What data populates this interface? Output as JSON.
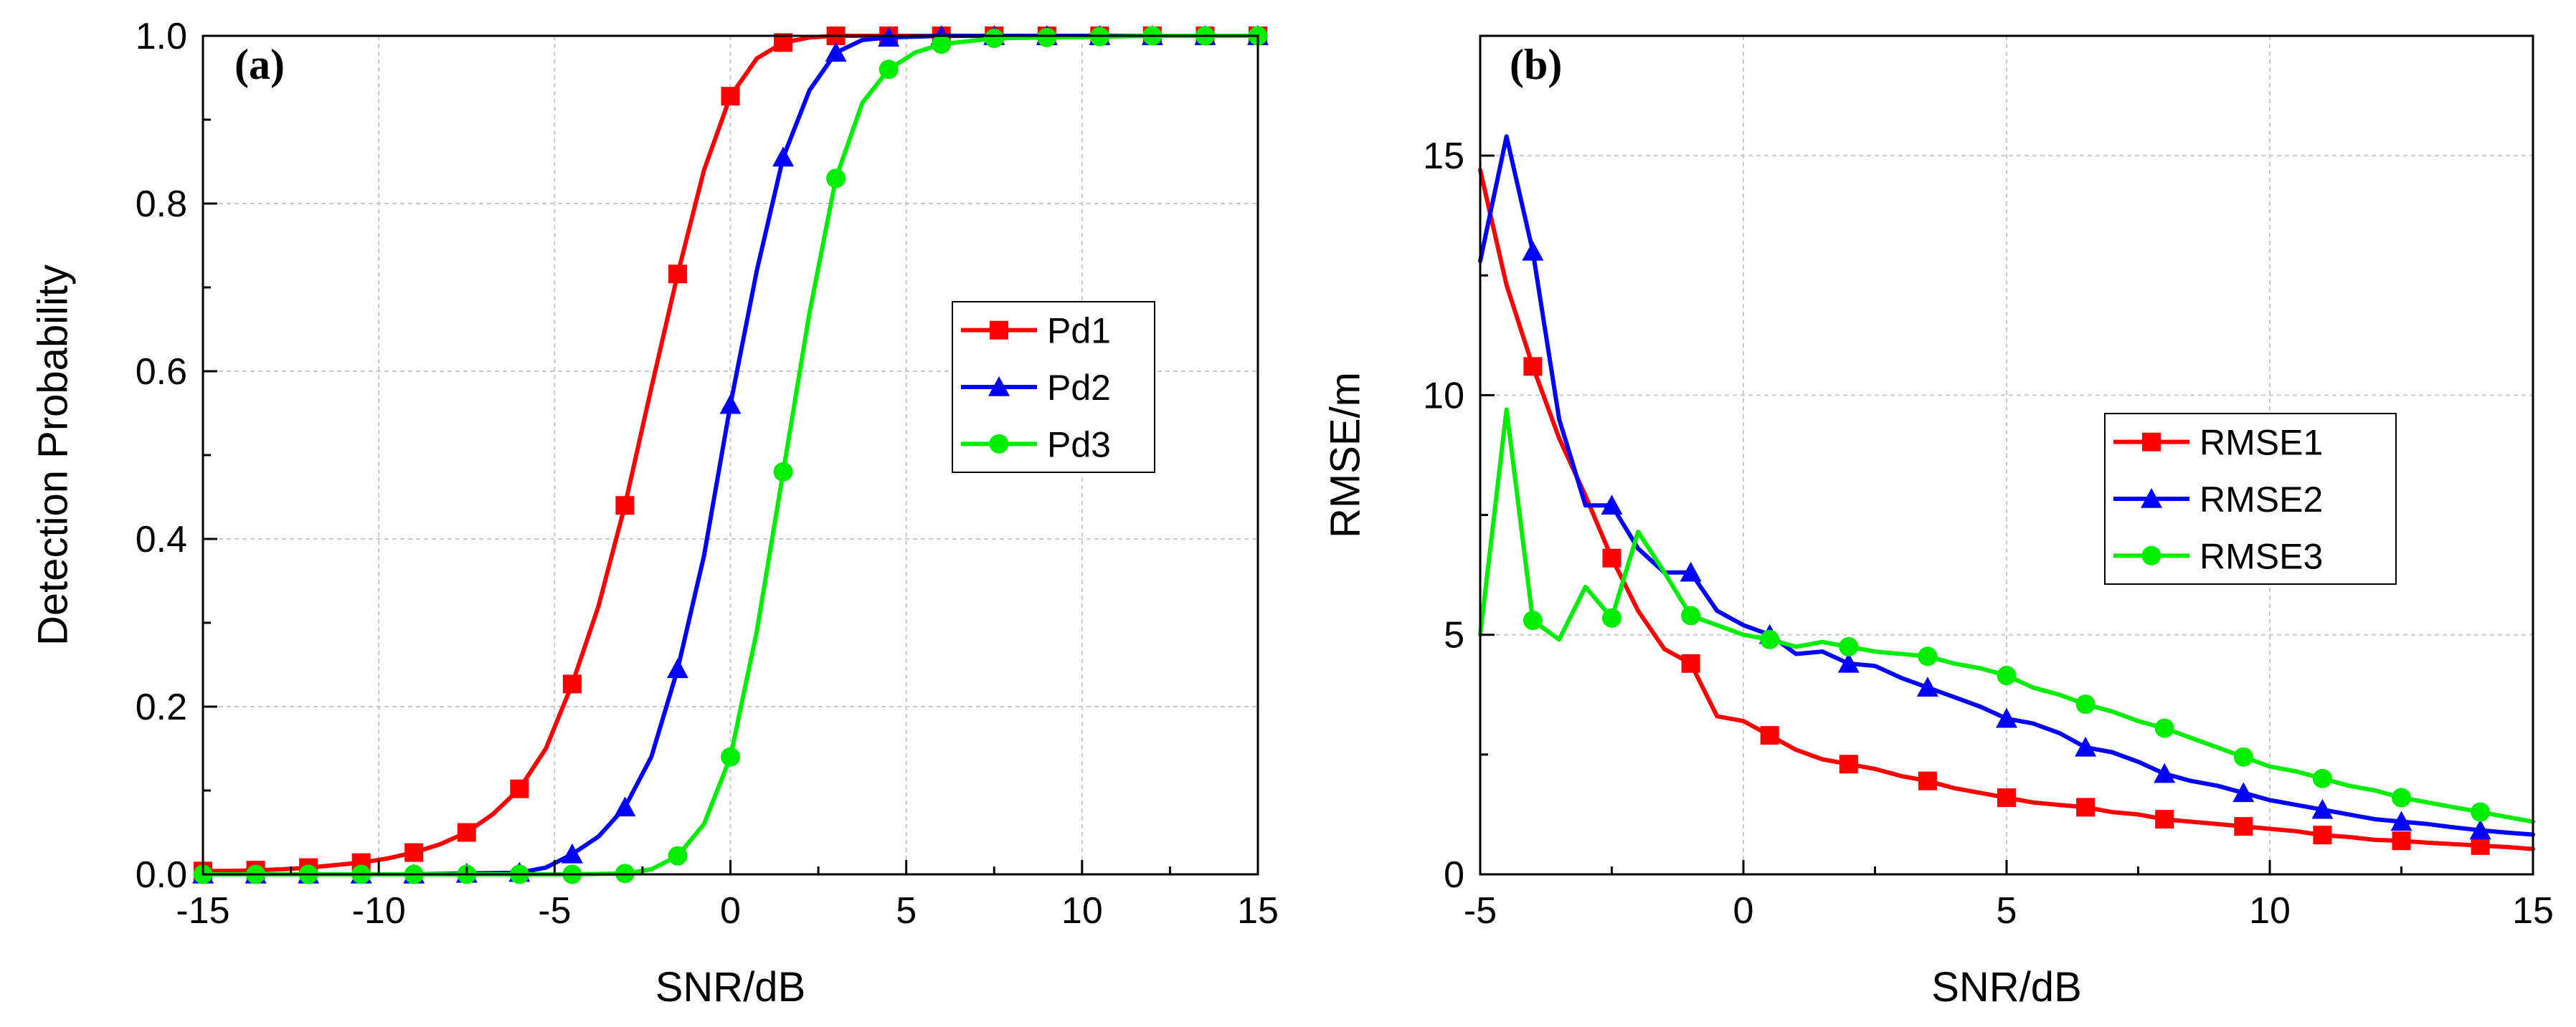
{
  "chart_data": [
    {
      "type": "line",
      "panel_label": "(a)",
      "xlabel": "SNR/dB",
      "ylabel": "Detection Probability",
      "xlim": [
        -15,
        15
      ],
      "ylim": [
        0,
        1
      ],
      "xticks": [
        "-15",
        "-10",
        "-5",
        "0",
        "5",
        "10",
        "15"
      ],
      "yticks": [
        "0.0",
        "0.2",
        "0.4",
        "0.6",
        "0.8",
        "1.0"
      ],
      "xtick_values": [
        -15,
        -10,
        -5,
        0,
        5,
        10,
        15
      ],
      "ytick_values": [
        0,
        0.2,
        0.4,
        0.6,
        0.8,
        1.0
      ],
      "grid": true,
      "legend_position": "middle-right",
      "series": [
        {
          "name": "Pd1",
          "color": "#ff0000",
          "marker": "square",
          "x": [
            -15,
            -14.25,
            -13.5,
            -12.75,
            -12,
            -11.25,
            -10.5,
            -9.75,
            -9,
            -8.25,
            -7.5,
            -6.75,
            -6,
            -5.25,
            -4.5,
            -3.75,
            -3,
            -2.25,
            -1.5,
            -0.75,
            0,
            0.75,
            1.5,
            2.25,
            3,
            3.75,
            4.5,
            6,
            7.5,
            9,
            10.5,
            12,
            13.5,
            15
          ],
          "y": [
            0.004,
            0.004,
            0.005,
            0.006,
            0.008,
            0.011,
            0.014,
            0.019,
            0.026,
            0.036,
            0.05,
            0.072,
            0.102,
            0.15,
            0.227,
            0.32,
            0.44,
            0.58,
            0.716,
            0.84,
            0.928,
            0.973,
            0.992,
            0.998,
            1.0,
            1.0,
            1.0,
            1.0,
            1.0,
            1.0,
            1.0,
            1.0,
            1.0,
            1.0
          ],
          "marker_x": [
            -15,
            -13.5,
            -12,
            -10.5,
            -9,
            -7.5,
            -6,
            -4.5,
            -3,
            -1.5,
            0,
            1.5,
            3,
            4.5,
            6,
            7.5,
            9,
            10.5,
            12,
            13.5,
            15
          ]
        },
        {
          "name": "Pd2",
          "color": "#0000ff",
          "marker": "triangle",
          "x": [
            -15,
            -13.5,
            -12,
            -10.5,
            -9,
            -7.5,
            -6,
            -5.25,
            -4.5,
            -3.75,
            -3,
            -2.25,
            -1.5,
            -0.75,
            0,
            0.75,
            1.5,
            2.25,
            3,
            3.75,
            4.5,
            6,
            7.5,
            9,
            10.5,
            12,
            13.5,
            15
          ],
          "y": [
            0.0,
            0.0,
            0.0,
            0.0,
            0.0,
            0.001,
            0.002,
            0.008,
            0.024,
            0.045,
            0.08,
            0.14,
            0.245,
            0.38,
            0.56,
            0.72,
            0.855,
            0.935,
            0.98,
            0.995,
            0.998,
            1.0,
            1.0,
            1.0,
            1.0,
            1.0,
            1.0,
            1.0
          ],
          "marker_x": [
            -15,
            -13.5,
            -12,
            -10.5,
            -9,
            -7.5,
            -6,
            -4.5,
            -3,
            -1.5,
            0,
            1.5,
            3,
            4.5,
            6,
            7.5,
            9,
            10.5,
            12,
            13.5,
            15
          ]
        },
        {
          "name": "Pd3",
          "color": "#00ee00",
          "marker": "circle",
          "x": [
            -15,
            -13.5,
            -12,
            -10.5,
            -9,
            -7.5,
            -6,
            -4.5,
            -3,
            -2.25,
            -1.5,
            -0.75,
            0,
            0.75,
            1.5,
            2.25,
            3,
            3.75,
            4.5,
            5.25,
            6,
            7.5,
            9,
            10.5,
            12,
            13.5,
            15
          ],
          "y": [
            0.0,
            0.0,
            0.0,
            0.0,
            0.0,
            0.0,
            0.0,
            0.0,
            0.001,
            0.006,
            0.022,
            0.06,
            0.14,
            0.29,
            0.48,
            0.67,
            0.83,
            0.92,
            0.96,
            0.98,
            0.99,
            0.997,
            0.998,
            0.999,
            1.0,
            1.0,
            1.0
          ],
          "marker_x": [
            -15,
            -13.5,
            -12,
            -10.5,
            -9,
            -7.5,
            -6,
            -4.5,
            -3,
            -1.5,
            0,
            1.5,
            3,
            4.5,
            6,
            7.5,
            9,
            10.5,
            12,
            13.5,
            15
          ]
        }
      ]
    },
    {
      "type": "line",
      "panel_label": "(b)",
      "xlabel": "SNR/dB",
      "ylabel": "RMSE/m",
      "xlim": [
        -5,
        15
      ],
      "ylim": [
        0,
        17.5
      ],
      "xticks": [
        "-5",
        "0",
        "5",
        "10",
        "15"
      ],
      "yticks": [
        "0",
        "5",
        "10",
        "15"
      ],
      "xtick_values": [
        -5,
        0,
        5,
        10,
        15
      ],
      "ytick_values": [
        0,
        5,
        10,
        15
      ],
      "grid": true,
      "legend_position": "middle-right",
      "series": [
        {
          "name": "RMSE1",
          "color": "#ff0000",
          "marker": "square",
          "x": [
            -5,
            -4.5,
            -4,
            -3.5,
            -3,
            -2.5,
            -2,
            -1.5,
            -1,
            -0.5,
            0,
            0.5,
            1,
            1.5,
            2,
            2.5,
            3,
            3.5,
            4,
            4.5,
            5,
            5.5,
            6,
            6.5,
            7,
            7.5,
            8,
            8.5,
            9,
            9.5,
            10,
            10.5,
            11,
            11.5,
            12,
            12.5,
            13,
            13.5,
            14,
            14.5,
            15
          ],
          "y": [
            14.7,
            12.3,
            10.6,
            9.1,
            7.9,
            6.6,
            5.5,
            4.7,
            4.4,
            3.3,
            3.2,
            2.9,
            2.6,
            2.4,
            2.3,
            2.2,
            2.05,
            1.95,
            1.8,
            1.7,
            1.6,
            1.5,
            1.45,
            1.4,
            1.3,
            1.25,
            1.15,
            1.1,
            1.05,
            1.0,
            0.95,
            0.9,
            0.82,
            0.78,
            0.72,
            0.7,
            0.66,
            0.63,
            0.6,
            0.57,
            0.53
          ],
          "marker_x": [
            -4,
            -2.5,
            -1,
            0.5,
            2,
            3.5,
            5,
            6.5,
            8,
            9.5,
            11,
            12.5,
            14
          ]
        },
        {
          "name": "RMSE2",
          "color": "#0000ff",
          "marker": "triangle",
          "x": [
            -5,
            -4.5,
            -4,
            -3.5,
            -3,
            -2.5,
            -2,
            -1.5,
            -1,
            -0.5,
            0,
            0.5,
            1,
            1.5,
            2,
            2.5,
            3,
            3.5,
            4,
            4.5,
            5,
            5.5,
            6,
            6.5,
            7,
            7.5,
            8,
            8.5,
            9,
            9.5,
            10,
            10.5,
            11,
            11.5,
            12,
            12.5,
            13,
            13.5,
            14,
            14.5,
            15
          ],
          "y": [
            12.8,
            15.4,
            13.0,
            9.5,
            7.7,
            7.7,
            6.8,
            6.3,
            6.3,
            5.5,
            5.2,
            5.0,
            4.6,
            4.65,
            4.4,
            4.35,
            4.1,
            3.9,
            3.7,
            3.5,
            3.25,
            3.15,
            2.95,
            2.65,
            2.55,
            2.35,
            2.1,
            1.95,
            1.85,
            1.7,
            1.55,
            1.45,
            1.35,
            1.25,
            1.15,
            1.1,
            1.05,
            0.98,
            0.92,
            0.87,
            0.83
          ],
          "marker_x": [
            -4,
            -2.5,
            -1,
            0.5,
            2,
            3.5,
            5,
            6.5,
            8,
            9.5,
            11,
            12.5,
            14
          ]
        },
        {
          "name": "RMSE3",
          "color": "#00ee00",
          "marker": "circle",
          "x": [
            -5,
            -4.5,
            -4,
            -3.5,
            -3,
            -2.5,
            -2,
            -1.5,
            -1,
            -0.5,
            0,
            0.5,
            1,
            1.5,
            2,
            2.5,
            3,
            3.5,
            4,
            4.5,
            5,
            5.5,
            6,
            6.5,
            7,
            7.5,
            8,
            8.5,
            9,
            9.5,
            10,
            10.5,
            11,
            11.5,
            12,
            12.5,
            13,
            13.5,
            14,
            14.5,
            15
          ],
          "y": [
            5.0,
            9.7,
            5.3,
            4.9,
            6.0,
            5.35,
            7.15,
            6.3,
            5.4,
            5.2,
            5.0,
            4.9,
            4.75,
            4.85,
            4.75,
            4.65,
            4.6,
            4.55,
            4.4,
            4.3,
            4.15,
            3.9,
            3.75,
            3.55,
            3.4,
            3.2,
            3.05,
            2.85,
            2.65,
            2.45,
            2.25,
            2.15,
            2.0,
            1.85,
            1.75,
            1.6,
            1.5,
            1.4,
            1.3,
            1.2,
            1.1
          ],
          "marker_x": [
            -4,
            -2.5,
            -1,
            0.5,
            2,
            3.5,
            5,
            6.5,
            8,
            9.5,
            11,
            12.5,
            14
          ]
        }
      ]
    }
  ]
}
